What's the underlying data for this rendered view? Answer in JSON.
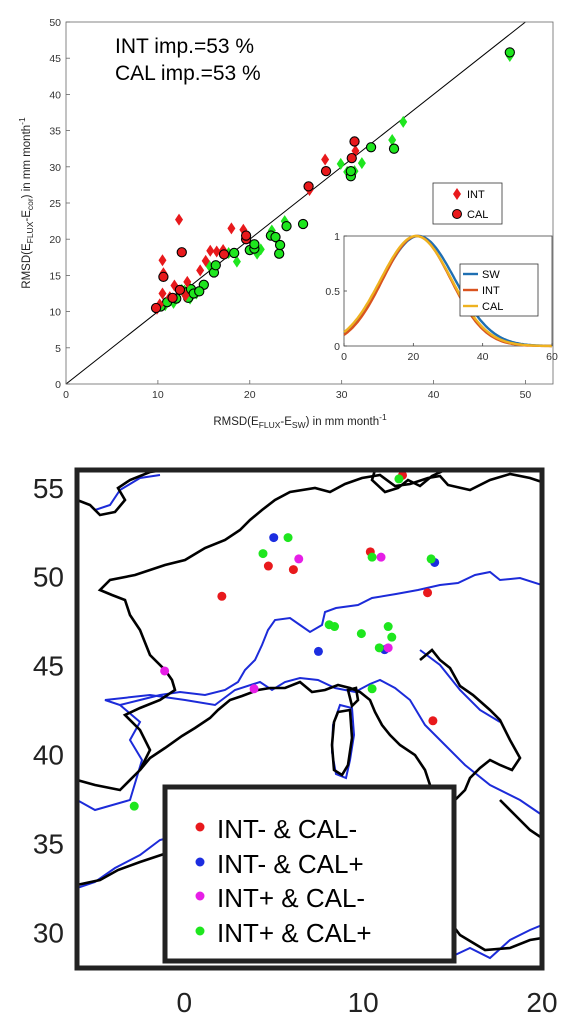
{
  "chart_data": [
    {
      "type": "scatter",
      "xlabel_parts": [
        "RMSD(E",
        "FLUX",
        "-E",
        "SW",
        ") in mm month",
        "-1"
      ],
      "ylabel_parts": [
        "RMSD(E",
        "FLUX",
        "-E",
        "cor",
        ") in mm month",
        "-1"
      ],
      "xlim": [
        0,
        53
      ],
      "ylim": [
        0,
        50
      ],
      "xticks": [
        0,
        10,
        20,
        30,
        40,
        50
      ],
      "yticks": [
        0,
        5,
        10,
        15,
        20,
        25,
        30,
        35,
        40,
        45,
        50
      ],
      "annotations": [
        "INT imp.=53 %",
        "CAL imp.=53 %"
      ],
      "reference_line": "1:1",
      "legend": {
        "position": "right",
        "entries": [
          "INT",
          "CAL"
        ]
      },
      "series": [
        {
          "name": "INT",
          "marker": "diamond",
          "points": [
            [
              10.2,
              11.0
            ],
            [
              10.5,
              12.5
            ],
            [
              10.5,
              17.1
            ],
            [
              10.6,
              15.3
            ],
            [
              11.3,
              12.0
            ],
            [
              12.3,
              22.7
            ],
            [
              13.0,
              12.2
            ],
            [
              13.2,
              14.1
            ],
            [
              14.6,
              15.7
            ],
            [
              15.7,
              18.4
            ],
            [
              16.4,
              18.3
            ],
            [
              17.1,
              18.5
            ],
            [
              18.0,
              21.5
            ],
            [
              19.3,
              21.3
            ],
            [
              26.5,
              26.8
            ],
            [
              28.2,
              31.0
            ],
            [
              31.5,
              32.2
            ],
            [
              9.9,
              10.4
            ],
            [
              11.8,
              13.6
            ],
            [
              15.2,
              17.0
            ],
            [
              13.5,
              11.8
            ],
            [
              12.6,
              13.0
            ],
            [
              16.0,
              15.6
            ],
            [
              14.2,
              12.5
            ],
            [
              22.4,
              21.2
            ],
            [
              18.6,
              16.9
            ],
            [
              20.8,
              18.0
            ],
            [
              23.8,
              22.5
            ],
            [
              30.6,
              29.3
            ],
            [
              32.2,
              30.5
            ],
            [
              35.5,
              33.7
            ],
            [
              36.7,
              36.2
            ],
            [
              48.3,
              45.3
            ],
            [
              11.7,
              11.2
            ],
            [
              15.6,
              16.3
            ],
            [
              21.2,
              18.6
            ],
            [
              22.8,
              20.2
            ],
            [
              17.7,
              18.1
            ],
            [
              12.9,
              12.9
            ],
            [
              13.5,
              13.2
            ],
            [
              23.4,
              19.1
            ],
            [
              10.8,
              10.9
            ],
            [
              29.9,
              30.4
            ],
            [
              31.4,
              29.4
            ]
          ],
          "colors": [
            "red",
            "red",
            "red",
            "red",
            "red",
            "red",
            "red",
            "red",
            "red",
            "red",
            "red",
            "red",
            "red",
            "red",
            "red",
            "red",
            "red",
            "red",
            "red",
            "red",
            "green",
            "green",
            "green",
            "green",
            "green",
            "green",
            "green",
            "green",
            "green",
            "green",
            "green",
            "green",
            "green",
            "green",
            "green",
            "green",
            "green",
            "green",
            "green",
            "green",
            "green",
            "green",
            "green",
            "green"
          ]
        },
        {
          "name": "CAL",
          "marker": "circle",
          "points": [
            [
              9.8,
              10.5
            ],
            [
              10.6,
              14.8
            ],
            [
              11.6,
              11.9
            ],
            [
              12.4,
              13.0
            ],
            [
              12.6,
              18.2
            ],
            [
              17.2,
              17.9
            ],
            [
              19.6,
              20.0
            ],
            [
              19.6,
              20.5
            ],
            [
              26.4,
              27.3
            ],
            [
              28.3,
              29.4
            ],
            [
              31.1,
              31.2
            ],
            [
              31.4,
              33.5
            ],
            [
              10.3,
              10.7
            ],
            [
              11.0,
              11.3
            ],
            [
              12.0,
              11.8
            ],
            [
              13.2,
              12.7
            ],
            [
              13.6,
              13.1
            ],
            [
              15.0,
              13.7
            ],
            [
              16.1,
              15.4
            ],
            [
              16.3,
              16.4
            ],
            [
              18.3,
              18.1
            ],
            [
              20.0,
              18.5
            ],
            [
              20.5,
              18.7
            ],
            [
              20.5,
              19.3
            ],
            [
              22.3,
              20.5
            ],
            [
              22.8,
              20.3
            ],
            [
              23.2,
              18.0
            ],
            [
              23.3,
              19.2
            ],
            [
              24.0,
              21.8
            ],
            [
              25.8,
              22.1
            ],
            [
              31.0,
              28.7
            ],
            [
              31.0,
              29.4
            ],
            [
              33.2,
              32.7
            ],
            [
              35.7,
              32.5
            ],
            [
              48.3,
              45.8
            ],
            [
              13.3,
              11.9
            ],
            [
              13.9,
              12.5
            ],
            [
              14.5,
              12.8
            ]
          ],
          "colors": [
            "red",
            "red",
            "red",
            "red",
            "red",
            "red",
            "red",
            "red",
            "red",
            "red",
            "red",
            "red",
            "green",
            "green",
            "green",
            "green",
            "green",
            "green",
            "green",
            "green",
            "green",
            "green",
            "green",
            "green",
            "green",
            "green",
            "green",
            "green",
            "green",
            "green",
            "green",
            "green",
            "green",
            "green",
            "green",
            "green",
            "green",
            "green"
          ]
        }
      ],
      "inset": {
        "type": "line",
        "xlim": [
          0,
          60
        ],
        "ylim": [
          0,
          1
        ],
        "xticks": [
          0,
          20,
          40,
          60
        ],
        "yticks": [
          0,
          0.5,
          1
        ],
        "ytick_labels": [
          "0",
          "0.5",
          "1"
        ],
        "legend": {
          "position": "right",
          "entries": [
            "SW",
            "INT",
            "CAL"
          ]
        },
        "series": [
          {
            "name": "SW",
            "color": "#1f6fb2",
            "mean": 21.5,
            "sd": 10.5
          },
          {
            "name": "INT",
            "color": "#d9531f",
            "mean": 21.0,
            "sd": 9.8
          },
          {
            "name": "CAL",
            "color": "#eeb220",
            "mean": 20.8,
            "sd": 10.2
          }
        ]
      }
    },
    {
      "type": "map-scatter",
      "xlim": [
        -6,
        20
      ],
      "ylim": [
        28,
        56
      ],
      "xticks": [
        0,
        10,
        20
      ],
      "yticks": [
        30,
        35,
        40,
        45,
        50,
        55
      ],
      "legend": {
        "position": "bottom-center",
        "entries": [
          {
            "label": "INT- & CAL-",
            "color": "#e8191c"
          },
          {
            "label": "INT- & CAL+",
            "color": "#1c2de0"
          },
          {
            "label": "INT+ & CAL-",
            "color": "#e61ee6"
          },
          {
            "label": "INT+ & CAL+",
            "color": "#1ee61e"
          }
        ]
      },
      "points": [
        {
          "lon": 12.2,
          "lat": 55.7,
          "cat": "INT- & CAL-"
        },
        {
          "lon": 4.7,
          "lat": 50.6,
          "cat": "INT- & CAL-"
        },
        {
          "lon": 6.1,
          "lat": 50.4,
          "cat": "INT- & CAL-"
        },
        {
          "lon": 2.1,
          "lat": 48.9,
          "cat": "INT- & CAL-"
        },
        {
          "lon": 10.4,
          "lat": 51.4,
          "cat": "INT- & CAL-"
        },
        {
          "lon": 13.6,
          "lat": 49.1,
          "cat": "INT- & CAL-"
        },
        {
          "lon": 13.9,
          "lat": 41.9,
          "cat": "INT- & CAL-"
        },
        {
          "lon": 5.0,
          "lat": 52.2,
          "cat": "INT- & CAL+"
        },
        {
          "lon": 7.5,
          "lat": 45.8,
          "cat": "INT- & CAL+"
        },
        {
          "lon": 14.0,
          "lat": 50.8,
          "cat": "INT- & CAL+"
        },
        {
          "lon": 11.2,
          "lat": 45.9,
          "cat": "INT- & CAL+"
        },
        {
          "lon": 6.4,
          "lat": 51.0,
          "cat": "INT+ & CAL-"
        },
        {
          "lon": 11.0,
          "lat": 51.1,
          "cat": "INT+ & CAL-"
        },
        {
          "lon": -1.1,
          "lat": 44.7,
          "cat": "INT+ & CAL-"
        },
        {
          "lon": 3.9,
          "lat": 43.7,
          "cat": "INT+ & CAL-"
        },
        {
          "lon": 11.4,
          "lat": 46.0,
          "cat": "INT+ & CAL-"
        },
        {
          "lon": 12.0,
          "lat": 55.5,
          "cat": "INT+ & CAL+"
        },
        {
          "lon": 4.4,
          "lat": 51.3,
          "cat": "INT+ & CAL+"
        },
        {
          "lon": 5.8,
          "lat": 52.2,
          "cat": "INT+ & CAL+"
        },
        {
          "lon": 10.5,
          "lat": 51.1,
          "cat": "INT+ & CAL+"
        },
        {
          "lon": 13.8,
          "lat": 51.0,
          "cat": "INT+ & CAL+"
        },
        {
          "lon": 8.1,
          "lat": 47.3,
          "cat": "INT+ & CAL+"
        },
        {
          "lon": 8.4,
          "lat": 47.2,
          "cat": "INT+ & CAL+"
        },
        {
          "lon": 9.9,
          "lat": 46.8,
          "cat": "INT+ & CAL+"
        },
        {
          "lon": 11.4,
          "lat": 47.2,
          "cat": "INT+ & CAL+"
        },
        {
          "lon": 11.6,
          "lat": 46.6,
          "cat": "INT+ & CAL+"
        },
        {
          "lon": 10.9,
          "lat": 46.0,
          "cat": "INT+ & CAL+"
        },
        {
          "lon": 10.5,
          "lat": 43.7,
          "cat": "INT+ & CAL+"
        },
        {
          "lon": -2.8,
          "lat": 37.1,
          "cat": "INT+ & CAL+"
        }
      ]
    }
  ],
  "colors": {
    "int_cal_minus_red": "#e8191c",
    "improved_green": "#1ee61e",
    "coast": "#000000",
    "land_mask": "#1c2bd9"
  }
}
